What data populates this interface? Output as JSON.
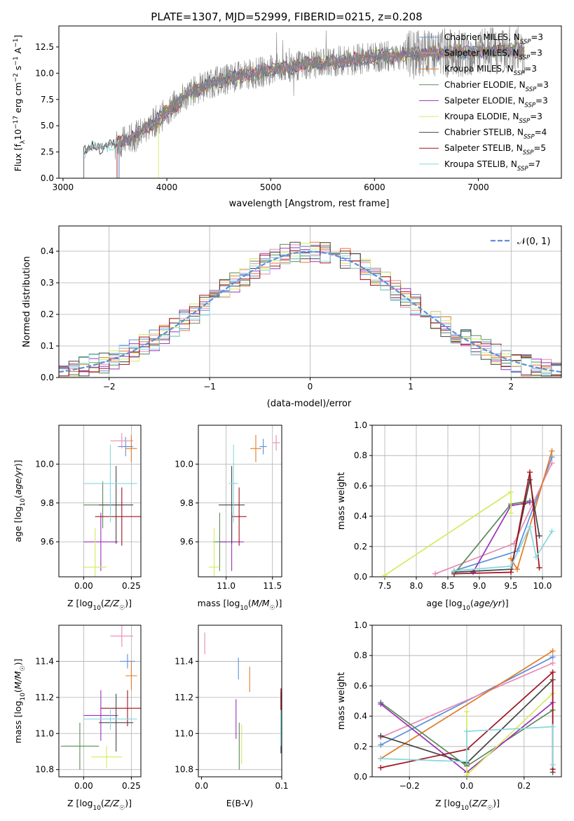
{
  "figure_title": "PLATE=1307, MJD=52999, FIBERID=0215, z=0.208",
  "colors": {
    "chabrier_miles": "#5b8fd9",
    "salpeter_miles": "#e88ab4",
    "kroupa_miles": "#e07b26",
    "chabrier_elodie": "#5a8a5a",
    "salpeter_elodie": "#9b30b8",
    "kroupa_elodie": "#d4ea60",
    "chabrier_stelib": "#444444",
    "salpeter_stelib": "#a0141e",
    "kroupa_stelib": "#86d8e0",
    "data": "#808080",
    "normal": "#5b8fd9"
  },
  "chart_data": [
    {
      "id": "spectrum",
      "type": "line",
      "title": "PLATE=1307, MJD=52999, FIBERID=0215, z=0.208",
      "xlabel": "wavelength [Angstrom, rest frame]",
      "ylabel": "Flux [f_λ 10^-17 erg cm^-2 s^-1 A^-1]",
      "xlim": [
        2960,
        7800
      ],
      "ylim": [
        0,
        14.5
      ],
      "x_ticks": [
        "3000",
        "4000",
        "5000",
        "6000",
        "7000"
      ],
      "y_ticks": [
        "0.0",
        "2.5",
        "5.0",
        "7.5",
        "10.0",
        "12.5"
      ],
      "continuum": {
        "x": [
          3200,
          3300,
          3500,
          3700,
          3900,
          4000,
          4200,
          4400,
          4600,
          4800,
          5000,
          5200,
          5400,
          5600,
          5800,
          6000,
          6200,
          6400,
          6600,
          6800,
          7000,
          7200,
          7400
        ],
        "y": [
          2.5,
          3.0,
          3.2,
          4.0,
          5.5,
          6.3,
          8.0,
          9.0,
          9.5,
          9.9,
          10.3,
          10.6,
          10.9,
          11.1,
          11.3,
          11.5,
          11.7,
          11.8,
          11.9,
          12.0,
          12.0,
          12.1,
          12.2
        ]
      },
      "legend": [
        {
          "label": "Chabrier MILES, N",
          "sub": "SSP",
          "suffix": "=3"
        },
        {
          "label": "Salpeter MILES, N",
          "sub": "SSP",
          "suffix": "=3"
        },
        {
          "label": "Kroupa MILES, N",
          "sub": "SSP",
          "suffix": "=3"
        },
        {
          "label": "Chabrier ELODIE, N",
          "sub": "SSP",
          "suffix": "=3"
        },
        {
          "label": "Salpeter ELODIE, N",
          "sub": "SSP",
          "suffix": "=3"
        },
        {
          "label": "Kroupa ELODIE, N",
          "sub": "SSP",
          "suffix": "=3"
        },
        {
          "label": "Chabrier STELIB, N",
          "sub": "SSP",
          "suffix": "=4"
        },
        {
          "label": "Salpeter STELIB, N",
          "sub": "SSP",
          "suffix": "=5"
        },
        {
          "label": "Kroupa STELIB, N",
          "sub": "SSP",
          "suffix": "=7"
        }
      ]
    },
    {
      "id": "residuals",
      "type": "line",
      "xlabel": "(data-model)/error",
      "ylabel": "Normed distribution",
      "xlim": [
        -2.5,
        2.5
      ],
      "ylim": [
        0,
        0.48
      ],
      "x_ticks": [
        "−2",
        "−1",
        "0",
        "1",
        "2"
      ],
      "y_ticks": [
        "0.0",
        "0.1",
        "0.2",
        "0.3",
        "0.4"
      ],
      "grid": true,
      "legend": {
        "label": "𝒩(0, 1)",
        "placement": "top-right"
      },
      "bin_width": 0.1,
      "bins_start": -2.5,
      "bins_count": 50
    },
    {
      "id": "age_vs_Z",
      "type": "scatter",
      "xlabel": "Z [log₁₀(Z/Z☉)]",
      "ylabel": "age  [log₁₀(age/yr)]",
      "xlim": [
        -0.13,
        0.3
      ],
      "ylim": [
        9.42,
        10.2
      ],
      "x_ticks": [
        {
          "v": 0.0,
          "t": "0.00"
        },
        {
          "v": 0.25,
          "t": "0.25"
        }
      ],
      "y_ticks": [
        {
          "v": 9.6,
          "t": "9.6"
        },
        {
          "v": 9.8,
          "t": "9.8"
        },
        {
          "v": 10.0,
          "t": "10.0"
        }
      ],
      "points": [
        {
          "s": "chabrier_miles",
          "x": 0.22,
          "xe": 0.04,
          "y": 10.09,
          "ye": 0.05
        },
        {
          "s": "salpeter_miles",
          "x": 0.2,
          "xe": 0.06,
          "y": 10.12,
          "ye": 0.04
        },
        {
          "s": "kroupa_miles",
          "x": 0.25,
          "xe": 0.03,
          "y": 10.08,
          "ye": 0.07
        },
        {
          "s": "chabrier_elodie",
          "x": 0.1,
          "xe": 0.1,
          "y": 9.79,
          "ye": 0.12
        },
        {
          "s": "salpeter_elodie",
          "x": 0.09,
          "xe": 0.09,
          "y": 9.6,
          "ye": 0.15
        },
        {
          "s": "kroupa_elodie",
          "x": 0.06,
          "xe": 0.06,
          "y": 9.47,
          "ye": 0.2
        },
        {
          "s": "chabrier_stelib",
          "x": 0.17,
          "xe": 0.09,
          "y": 9.79,
          "ye": 0.2
        },
        {
          "s": "salpeter_stelib",
          "x": 0.2,
          "xe": 0.14,
          "y": 9.73,
          "ye": 0.15
        },
        {
          "s": "kroupa_stelib",
          "x": 0.14,
          "xe": 0.14,
          "y": 9.9,
          "ye": 0.2
        }
      ]
    },
    {
      "id": "age_vs_mass",
      "type": "scatter",
      "xlabel": "mass [log₁₀(M/M☉)]",
      "ylabel": "",
      "xlim": [
        10.7,
        11.6
      ],
      "ylim": [
        9.42,
        10.2
      ],
      "x_ticks": [
        {
          "v": 11.0,
          "t": "11.0"
        },
        {
          "v": 11.5,
          "t": "11.5"
        }
      ],
      "y_ticks": [
        {
          "v": 9.6,
          "t": "9.6"
        },
        {
          "v": 9.8,
          "t": "9.8"
        },
        {
          "v": 10.0,
          "t": "10.0"
        }
      ],
      "points": [
        {
          "s": "chabrier_miles",
          "x": 11.4,
          "xe": 0.04,
          "y": 10.09,
          "ye": 0.04
        },
        {
          "s": "salpeter_miles",
          "x": 11.54,
          "xe": 0.04,
          "y": 10.11,
          "ye": 0.04
        },
        {
          "s": "kroupa_miles",
          "x": 11.32,
          "xe": 0.06,
          "y": 10.08,
          "ye": 0.07
        },
        {
          "s": "chabrier_elodie",
          "x": 10.93,
          "xe": 0.07,
          "y": 9.6,
          "ye": 0.15
        },
        {
          "s": "salpeter_elodie",
          "x": 11.06,
          "xe": 0.13,
          "y": 9.6,
          "ye": 0.15
        },
        {
          "s": "kroupa_elodie",
          "x": 10.87,
          "xe": 0.06,
          "y": 9.47,
          "ye": 0.2
        },
        {
          "s": "chabrier_stelib",
          "x": 11.06,
          "xe": 0.14,
          "y": 9.79,
          "ye": 0.2
        },
        {
          "s": "salpeter_stelib",
          "x": 11.14,
          "xe": 0.08,
          "y": 9.73,
          "ye": 0.15
        },
        {
          "s": "kroupa_stelib",
          "x": 11.08,
          "xe": 0.05,
          "y": 9.9,
          "ye": 0.2
        }
      ]
    },
    {
      "id": "mass_weight_vs_age",
      "type": "line",
      "xlabel": "age  [log₁₀(age/yr)]",
      "ylabel": "mass weight",
      "xlim": [
        7.3,
        10.3
      ],
      "ylim": [
        0,
        1.0
      ],
      "x_ticks": [
        {
          "v": 7.5,
          "t": "7.5"
        },
        {
          "v": 8.0,
          "t": "8.0"
        },
        {
          "v": 8.5,
          "t": "8.5"
        },
        {
          "v": 9.0,
          "t": "9.0"
        },
        {
          "v": 9.5,
          "t": "9.5"
        },
        {
          "v": 10.0,
          "t": "10.0"
        }
      ],
      "y_ticks": [
        {
          "v": 0,
          "t": "0.0"
        },
        {
          "v": 0.2,
          "t": "0.2"
        },
        {
          "v": 0.4,
          "t": "0.4"
        },
        {
          "v": 0.6,
          "t": "0.6"
        },
        {
          "v": 0.8,
          "t": "0.8"
        },
        {
          "v": 1.0,
          "t": "1.0"
        }
      ],
      "series": [
        {
          "s": "chabrier_miles",
          "x": [
            8.6,
            9.6,
            10.15
          ],
          "y": [
            0.04,
            0.17,
            0.79
          ]
        },
        {
          "s": "salpeter_miles",
          "x": [
            8.3,
            9.55,
            10.15
          ],
          "y": [
            0.02,
            0.22,
            0.75
          ]
        },
        {
          "s": "kroupa_miles",
          "x": [
            9.5,
            9.6,
            10.15
          ],
          "y": [
            0.12,
            0.05,
            0.83
          ]
        },
        {
          "s": "chabrier_elodie",
          "x": [
            8.6,
            9.5,
            9.8
          ],
          "y": [
            0.02,
            0.48,
            0.5
          ]
        },
        {
          "s": "salpeter_elodie",
          "x": [
            8.9,
            9.5,
            9.8
          ],
          "y": [
            0.03,
            0.47,
            0.49
          ]
        },
        {
          "s": "kroupa_elodie",
          "x": [
            7.5,
            9.5,
            9.5
          ],
          "y": [
            0.01,
            0.56,
            0.42
          ]
        },
        {
          "s": "chabrier_stelib",
          "x": [
            8.6,
            9.5,
            9.8,
            9.95
          ],
          "y": [
            0.03,
            0.05,
            0.64,
            0.27
          ]
        },
        {
          "s": "salpeter_stelib",
          "x": [
            8.6,
            9.5,
            9.7,
            9.8,
            9.95
          ],
          "y": [
            0.02,
            0.03,
            0.48,
            0.69,
            0.06
          ]
        },
        {
          "s": "kroupa_stelib",
          "x": [
            8.6,
            9.5,
            9.8,
            9.9,
            10.15
          ],
          "y": [
            0.04,
            0.07,
            0.33,
            0.13,
            0.3
          ]
        }
      ]
    },
    {
      "id": "mass_vs_Z",
      "type": "scatter",
      "xlabel": "Z [log₁₀(Z/Z☉)]",
      "ylabel": "mass [log₁₀(M/M☉)]",
      "xlim": [
        -0.13,
        0.3
      ],
      "ylim": [
        10.76,
        11.6
      ],
      "x_ticks": [
        {
          "v": 0.0,
          "t": "0.00"
        },
        {
          "v": 0.25,
          "t": "0.25"
        }
      ],
      "y_ticks": [
        {
          "v": 10.8,
          "t": "10.8"
        },
        {
          "v": 11.0,
          "t": "11.0"
        },
        {
          "v": 11.2,
          "t": "11.2"
        },
        {
          "v": 11.4,
          "t": "11.4"
        }
      ],
      "points": [
        {
          "s": "chabrier_miles",
          "x": 0.23,
          "xe": 0.04,
          "y": 11.4,
          "ye": 0.04
        },
        {
          "s": "salpeter_miles",
          "x": 0.2,
          "xe": 0.06,
          "y": 11.54,
          "ye": 0.06
        },
        {
          "s": "kroupa_miles",
          "x": 0.25,
          "xe": 0.03,
          "y": 11.32,
          "ye": 0.08
        },
        {
          "s": "chabrier_elodie",
          "x": -0.02,
          "xe": 0.1,
          "y": 10.93,
          "ye": 0.13
        },
        {
          "s": "salpeter_elodie",
          "x": 0.09,
          "xe": 0.09,
          "y": 11.1,
          "ye": 0.14
        },
        {
          "s": "kroupa_elodie",
          "x": 0.12,
          "xe": 0.08,
          "y": 10.87,
          "ye": 0.06
        },
        {
          "s": "chabrier_stelib",
          "x": 0.17,
          "xe": 0.09,
          "y": 11.06,
          "ye": 0.16
        },
        {
          "s": "salpeter_stelib",
          "x": 0.23,
          "xe": 0.14,
          "y": 11.14,
          "ye": 0.1
        },
        {
          "s": "kroupa_stelib",
          "x": 0.14,
          "xe": 0.14,
          "y": 11.08,
          "ye": 0.06
        }
      ]
    },
    {
      "id": "mass_vs_ebv",
      "type": "scatter",
      "xlabel": "E(B-V)",
      "ylabel": "",
      "xlim": [
        -0.004,
        0.1
      ],
      "ylim": [
        10.76,
        11.6
      ],
      "x_ticks": [
        {
          "v": 0.0,
          "t": "0.0"
        },
        {
          "v": 0.1,
          "t": "0.1"
        }
      ],
      "y_ticks": [
        {
          "v": 10.8,
          "t": "10.8"
        },
        {
          "v": 11.0,
          "t": "11.0"
        },
        {
          "v": 11.2,
          "t": "11.2"
        },
        {
          "v": 11.4,
          "t": "11.4"
        }
      ],
      "points": [
        {
          "s": "chabrier_miles",
          "x": 0.046,
          "xe": 0,
          "y": 11.36,
          "ye": 0.06
        },
        {
          "s": "salpeter_miles",
          "x": 0.004,
          "xe": 0,
          "y": 11.5,
          "ye": 0.06
        },
        {
          "s": "kroupa_miles",
          "x": 0.06,
          "xe": 0,
          "y": 11.3,
          "ye": 0.07
        },
        {
          "s": "chabrier_elodie",
          "x": 0.047,
          "xe": 0,
          "y": 10.93,
          "ye": 0.13
        },
        {
          "s": "salpeter_elodie",
          "x": 0.043,
          "xe": 0,
          "y": 11.08,
          "ye": 0.11
        },
        {
          "s": "kroupa_elodie",
          "x": 0.05,
          "xe": 0,
          "y": 10.94,
          "ye": 0.11
        },
        {
          "s": "chabrier_stelib",
          "x": 0.099,
          "xe": 0,
          "y": 11.06,
          "ye": 0.17
        },
        {
          "s": "salpeter_stelib",
          "x": 0.099,
          "xe": 0,
          "y": 11.19,
          "ye": 0.06
        },
        {
          "s": "kroupa_stelib",
          "x": 0.099,
          "xe": 0,
          "y": 11.03,
          "ye": 0.1
        }
      ]
    },
    {
      "id": "mass_weight_vs_Z",
      "type": "line",
      "xlabel": "Z [log₁₀(Z/Z☉)]",
      "ylabel": "mass weight",
      "xlim": [
        -0.33,
        0.33
      ],
      "ylim": [
        0,
        1.0
      ],
      "x_ticks": [
        {
          "v": -0.2,
          "t": "−0.2"
        },
        {
          "v": 0.0,
          "t": "0.0"
        },
        {
          "v": 0.2,
          "t": "0.2"
        }
      ],
      "y_ticks": [
        {
          "v": 0,
          "t": "0.0"
        },
        {
          "v": 0.2,
          "t": "0.2"
        },
        {
          "v": 0.4,
          "t": "0.4"
        },
        {
          "v": 0.6,
          "t": "0.6"
        },
        {
          "v": 0.8,
          "t": "0.8"
        },
        {
          "v": 1.0,
          "t": "1.0"
        }
      ],
      "series": [
        {
          "s": "chabrier_miles",
          "x": [
            -0.3,
            0.3
          ],
          "y": [
            0.21,
            0.79
          ]
        },
        {
          "s": "salpeter_miles",
          "x": [
            -0.3,
            0.3
          ],
          "y": [
            0.26,
            0.75
          ]
        },
        {
          "s": "kroupa_miles",
          "x": [
            -0.3,
            0.3
          ],
          "y": [
            0.12,
            0.83
          ]
        },
        {
          "s": "chabrier_elodie",
          "x": [
            -0.3,
            0.0,
            0.3
          ],
          "y": [
            0.49,
            0.07,
            0.44
          ]
        },
        {
          "s": "salpeter_elodie",
          "x": [
            -0.3,
            0.0,
            0.3
          ],
          "y": [
            0.48,
            0.03,
            0.49
          ]
        },
        {
          "s": "kroupa_elodie",
          "x": [
            0.0,
            0.0,
            0.3
          ],
          "y": [
            0.43,
            0.01,
            0.55
          ]
        },
        {
          "s": "chabrier_stelib",
          "x": [
            -0.3,
            0.0,
            0.3,
            0.3
          ],
          "y": [
            0.27,
            0.09,
            0.64,
            0.03
          ]
        },
        {
          "s": "salpeter_stelib",
          "x": [
            -0.3,
            0.0,
            0.3,
            0.3
          ],
          "y": [
            0.06,
            0.18,
            0.69,
            0.05
          ]
        },
        {
          "s": "kroupa_stelib",
          "x": [
            -0.3,
            0.0,
            0.0,
            0.3,
            0.3
          ],
          "y": [
            0.12,
            0.1,
            0.3,
            0.33,
            0.08
          ]
        }
      ]
    }
  ]
}
